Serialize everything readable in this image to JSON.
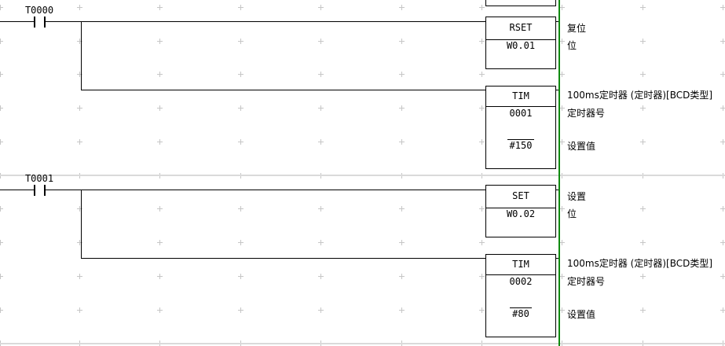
{
  "colors": {
    "rail_green": "#108a10",
    "wire": "#000000",
    "grid_mark": "#c6c6c6"
  },
  "rungs": [
    {
      "contact_label": "T0000",
      "blocks": [
        {
          "title": "RSET",
          "op1": "W0.01",
          "comment1": "复位",
          "comment2": "位"
        },
        {
          "title": "TIM",
          "op1": "0001",
          "op2": "#150",
          "comment1": "100ms定时器 (定时器)[BCD类型]",
          "comment2": "定时器号",
          "comment3": "设置值"
        }
      ]
    },
    {
      "contact_label": "T0001",
      "blocks": [
        {
          "title": "SET",
          "op1": "W0.02",
          "comment1": "设置",
          "comment2": "位"
        },
        {
          "title": "TIM",
          "op1": "0002",
          "op2": "#80",
          "comment1": "100ms定时器 (定时器)[BCD类型]",
          "comment2": "定时器号",
          "comment3": "设置值"
        }
      ]
    }
  ]
}
